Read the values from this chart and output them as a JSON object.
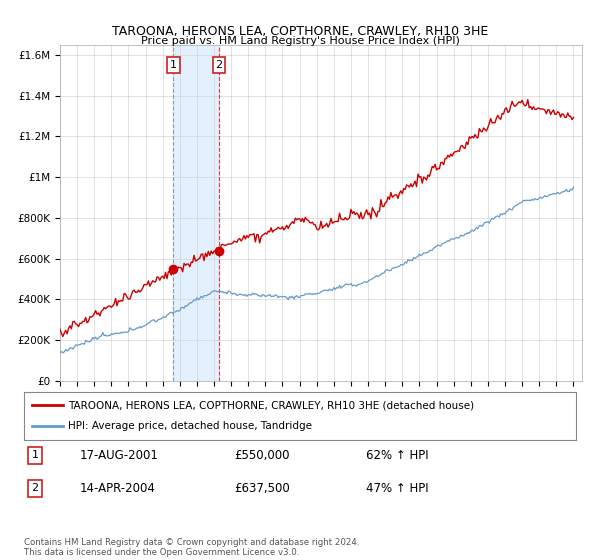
{
  "title": "TAROONA, HERONS LEA, COPTHORNE, CRAWLEY, RH10 3HE",
  "subtitle": "Price paid vs. HM Land Registry's House Price Index (HPI)",
  "legend_line1": "TAROONA, HERONS LEA, COPTHORNE, CRAWLEY, RH10 3HE (detached house)",
  "legend_line2": "HPI: Average price, detached house, Tandridge",
  "transaction1_date": "17-AUG-2001",
  "transaction1_price": "£550,000",
  "transaction1_hpi": "62% ↑ HPI",
  "transaction2_date": "14-APR-2004",
  "transaction2_price": "£637,500",
  "transaction2_hpi": "47% ↑ HPI",
  "footer": "Contains HM Land Registry data © Crown copyright and database right 2024.\nThis data is licensed under the Open Government Licence v3.0.",
  "red_color": "#cc0000",
  "blue_color": "#6699cc",
  "highlight_color": "#ddeeff",
  "grey_dashed_color": "#999999",
  "red_dashed_color": "#ee3333",
  "ylim_max": 1650000,
  "transaction1_year": 2001.625,
  "transaction2_year": 2004.292,
  "transaction1_price_val": 550000,
  "transaction2_price_val": 637500
}
